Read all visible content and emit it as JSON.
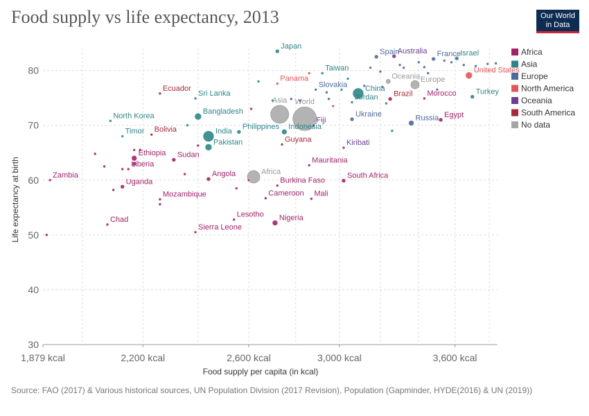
{
  "title": "Food supply vs life expectancy, 2013",
  "logo": {
    "line1": "Our World",
    "line2": "in Data"
  },
  "source": "Source: FAO (2017) & Various historical sources, UN Population Division (2017 Revision), Population (Gapminder, HYDE(2016) & UN (2019))",
  "colors": {
    "Africa": "#a2226a",
    "Asia": "#2d8587",
    "Europe": "#4c6a9c",
    "North America": "#e15759",
    "Oceania": "#6d3e91",
    "South America": "#a52a3a",
    "No data": "#a6a6a6"
  },
  "legend": [
    "Africa",
    "Asia",
    "Europe",
    "North America",
    "Oceania",
    "South America",
    "No data"
  ],
  "chart_data": {
    "type": "scatter",
    "title": "Food supply vs life expectancy, 2013",
    "xlabel": "Food supply per capita (in kcal)",
    "ylabel": "Life expectancy at birth",
    "x_scale": "log",
    "xlim": [
      1879,
      3850
    ],
    "ylim": [
      30,
      84
    ],
    "x_ticks": [
      {
        "value": 1879,
        "label": "1,879 kcal"
      },
      {
        "value": 2200,
        "label": "2,200 kcal"
      },
      {
        "value": 2600,
        "label": "2,600 kcal"
      },
      {
        "value": 3000,
        "label": "3,000 kcal"
      },
      {
        "value": 3600,
        "label": "3,600 kcal"
      }
    ],
    "y_ticks": [
      30,
      40,
      50,
      60,
      70,
      80
    ],
    "extra_gridlines_x": [
      2000,
      2400,
      2800,
      3200,
      3400,
      3800
    ],
    "grid": "dashed",
    "legend_position": "right",
    "labeled_points": [
      {
        "name": "Japan",
        "x": 2720,
        "y": 83.5,
        "region": "Asia",
        "size": 3
      },
      {
        "name": "Spain",
        "x": 3180,
        "y": 82.5,
        "region": "Europe",
        "size": 3
      },
      {
        "name": "Australia",
        "x": 3270,
        "y": 82.6,
        "region": "Oceania",
        "size": 3
      },
      {
        "name": "France",
        "x": 3480,
        "y": 82.1,
        "region": "Europe",
        "size": 3
      },
      {
        "name": "Israel",
        "x": 3610,
        "y": 82.2,
        "region": "Asia",
        "size": 3
      },
      {
        "name": "United States",
        "x": 3680,
        "y": 79.1,
        "region": "North America",
        "size": 5
      },
      {
        "name": "Turkey",
        "x": 3700,
        "y": 75.2,
        "region": "Asia",
        "size": 3
      },
      {
        "name": "Panama",
        "x": 2720,
        "y": 77.6,
        "region": "North America",
        "size": 2
      },
      {
        "name": "Oceania",
        "x": 3240,
        "y": 78.0,
        "region": "No data",
        "size": 3
      },
      {
        "name": "Europe",
        "x": 3380,
        "y": 77.4,
        "region": "No data",
        "size": 6
      },
      {
        "name": "Taiwan",
        "x": 2920,
        "y": 79.5,
        "region": "Asia",
        "size": 2
      },
      {
        "name": "Slovakia",
        "x": 2890,
        "y": 76.5,
        "region": "Europe",
        "size": 2
      },
      {
        "name": "China",
        "x": 3090,
        "y": 75.8,
        "region": "Asia",
        "size": 8
      },
      {
        "name": "Jordan",
        "x": 3060,
        "y": 74.2,
        "region": "Asia",
        "size": 2
      },
      {
        "name": "Brazil",
        "x": 3250,
        "y": 74.8,
        "region": "South America",
        "size": 3
      },
      {
        "name": "Morocco",
        "x": 3430,
        "y": 74.9,
        "region": "Africa",
        "size": 2
      },
      {
        "name": "Ecuador",
        "x": 2260,
        "y": 75.8,
        "region": "South America",
        "size": 2
      },
      {
        "name": "Sri Lanka",
        "x": 2390,
        "y": 74.9,
        "region": "Asia",
        "size": 2
      },
      {
        "name": "Asia",
        "x": 2730,
        "y": 72.0,
        "region": "No data",
        "size": 13
      },
      {
        "name": "World",
        "x": 2840,
        "y": 71.2,
        "region": "No data",
        "size": 17
      },
      {
        "name": "Fiji",
        "x": 2880,
        "y": 70.0,
        "region": "Oceania",
        "size": 2
      },
      {
        "name": "Bangladesh",
        "x": 2400,
        "y": 71.6,
        "region": "Asia",
        "size": 5
      },
      {
        "name": "Ukraine",
        "x": 3060,
        "y": 71.1,
        "region": "Europe",
        "size": 3
      },
      {
        "name": "Russia",
        "x": 3360,
        "y": 70.4,
        "region": "Europe",
        "size": 4
      },
      {
        "name": "Egypt",
        "x": 3520,
        "y": 71.0,
        "region": "Africa",
        "size": 3
      },
      {
        "name": "North Korea",
        "x": 2090,
        "y": 70.8,
        "region": "Asia",
        "size": 2
      },
      {
        "name": "Philippines",
        "x": 2560,
        "y": 68.8,
        "region": "Asia",
        "size": 3
      },
      {
        "name": "Indonesia",
        "x": 2750,
        "y": 68.8,
        "region": "Asia",
        "size": 4
      },
      {
        "name": "India",
        "x": 2440,
        "y": 68.0,
        "region": "Asia",
        "size": 8
      },
      {
        "name": "Timor",
        "x": 2130,
        "y": 68.0,
        "region": "Asia",
        "size": 2
      },
      {
        "name": "Bolivia",
        "x": 2230,
        "y": 68.3,
        "region": "South America",
        "size": 2
      },
      {
        "name": "Pakistan",
        "x": 2440,
        "y": 66.0,
        "region": "Asia",
        "size": 5
      },
      {
        "name": "Guyana",
        "x": 2740,
        "y": 66.5,
        "region": "South America",
        "size": 2
      },
      {
        "name": "Kiribati",
        "x": 3020,
        "y": 65.9,
        "region": "Oceania",
        "size": 2
      },
      {
        "name": "Ethiopia",
        "x": 2170,
        "y": 64.0,
        "region": "Africa",
        "size": 4
      },
      {
        "name": "Sudan",
        "x": 2310,
        "y": 63.7,
        "region": "Africa",
        "size": 3
      },
      {
        "name": "Mauritania",
        "x": 2860,
        "y": 62.7,
        "region": "Africa",
        "size": 2
      },
      {
        "name": "Liberia",
        "x": 2150,
        "y": 62.0,
        "region": "Africa",
        "size": 2
      },
      {
        "name": "Africa",
        "x": 2620,
        "y": 60.6,
        "region": "No data",
        "size": 9
      },
      {
        "name": "Angola",
        "x": 2440,
        "y": 60.2,
        "region": "Africa",
        "size": 3
      },
      {
        "name": "South Africa",
        "x": 3020,
        "y": 59.9,
        "region": "Africa",
        "size": 3
      },
      {
        "name": "Zambia",
        "x": 1900,
        "y": 60.0,
        "region": "Africa",
        "size": 2
      },
      {
        "name": "Uganda",
        "x": 2130,
        "y": 58.8,
        "region": "Africa",
        "size": 3
      },
      {
        "name": "Burkina Faso",
        "x": 2720,
        "y": 59.0,
        "region": "Africa",
        "size": 2
      },
      {
        "name": "Cameroon",
        "x": 2670,
        "y": 56.7,
        "region": "Africa",
        "size": 2
      },
      {
        "name": "Mali",
        "x": 2870,
        "y": 56.6,
        "region": "Africa",
        "size": 2
      },
      {
        "name": "Mozambique",
        "x": 2260,
        "y": 56.5,
        "region": "Africa",
        "size": 2
      },
      {
        "name": "Chad",
        "x": 2080,
        "y": 51.9,
        "region": "Africa",
        "size": 2
      },
      {
        "name": "Lesotho",
        "x": 2540,
        "y": 52.8,
        "region": "Africa",
        "size": 2
      },
      {
        "name": "Nigeria",
        "x": 2710,
        "y": 52.2,
        "region": "Africa",
        "size": 4
      },
      {
        "name": "Sierra Leone",
        "x": 2390,
        "y": 50.5,
        "region": "Africa",
        "size": 2
      }
    ],
    "other_points": [
      {
        "x": 1890,
        "y": 50.0,
        "region": "Africa",
        "size": 2
      },
      {
        "x": 2040,
        "y": 64.8,
        "region": "Africa",
        "size": 2
      },
      {
        "x": 2070,
        "y": 62.5,
        "region": "Africa",
        "size": 2
      },
      {
        "x": 2100,
        "y": 58.2,
        "region": "Africa",
        "size": 2
      },
      {
        "x": 2170,
        "y": 65.5,
        "region": "Africa",
        "size": 2
      },
      {
        "x": 2190,
        "y": 65.5,
        "region": "Africa",
        "size": 2
      },
      {
        "x": 2170,
        "y": 63.0,
        "region": "Africa",
        "size": 3
      },
      {
        "x": 2130,
        "y": 62.0,
        "region": "Africa",
        "size": 2
      },
      {
        "x": 2260,
        "y": 55.6,
        "region": "Africa",
        "size": 2
      },
      {
        "x": 2350,
        "y": 61.1,
        "region": "Africa",
        "size": 2
      },
      {
        "x": 2400,
        "y": 66.3,
        "region": "Africa",
        "size": 2
      },
      {
        "x": 2360,
        "y": 70.0,
        "region": "Asia",
        "size": 2
      },
      {
        "x": 2550,
        "y": 58.5,
        "region": "Africa",
        "size": 2
      },
      {
        "x": 2600,
        "y": 60.0,
        "region": "Africa",
        "size": 2
      },
      {
        "x": 2640,
        "y": 78.0,
        "region": "Asia",
        "size": 2
      },
      {
        "x": 2610,
        "y": 73.0,
        "region": "South America",
        "size": 2
      },
      {
        "x": 2700,
        "y": 74.5,
        "region": "Asia",
        "size": 2
      },
      {
        "x": 2780,
        "y": 74.8,
        "region": "Europe",
        "size": 2
      },
      {
        "x": 2820,
        "y": 74.5,
        "region": "Oceania",
        "size": 2
      },
      {
        "x": 2860,
        "y": 79.5,
        "region": "North America",
        "size": 2
      },
      {
        "x": 2940,
        "y": 76.0,
        "region": "Europe",
        "size": 2
      },
      {
        "x": 2950,
        "y": 74.8,
        "region": "Europe",
        "size": 2
      },
      {
        "x": 2970,
        "y": 73.5,
        "region": "North America",
        "size": 2
      },
      {
        "x": 3010,
        "y": 76.5,
        "region": "Asia",
        "size": 2
      },
      {
        "x": 3040,
        "y": 78.5,
        "region": "Asia",
        "size": 2
      },
      {
        "x": 3120,
        "y": 77.2,
        "region": "Europe",
        "size": 2
      },
      {
        "x": 3150,
        "y": 80.5,
        "region": "Europe",
        "size": 2
      },
      {
        "x": 3200,
        "y": 79.8,
        "region": "Europe",
        "size": 2
      },
      {
        "x": 3210,
        "y": 77.0,
        "region": "Europe",
        "size": 2
      },
      {
        "x": 3230,
        "y": 74.0,
        "region": "Europe",
        "size": 2
      },
      {
        "x": 3260,
        "y": 69.0,
        "region": "Asia",
        "size": 2
      },
      {
        "x": 3300,
        "y": 81.0,
        "region": "Europe",
        "size": 2
      },
      {
        "x": 3320,
        "y": 80.5,
        "region": "Europe",
        "size": 2
      },
      {
        "x": 3400,
        "y": 81.5,
        "region": "Europe",
        "size": 2
      },
      {
        "x": 3430,
        "y": 80.6,
        "region": "Europe",
        "size": 2
      },
      {
        "x": 3450,
        "y": 79.5,
        "region": "Europe",
        "size": 2
      },
      {
        "x": 3500,
        "y": 76.5,
        "region": "Europe",
        "size": 2
      },
      {
        "x": 3540,
        "y": 81.8,
        "region": "Europe",
        "size": 2
      },
      {
        "x": 3580,
        "y": 81.5,
        "region": "Europe",
        "size": 2
      },
      {
        "x": 3650,
        "y": 81.0,
        "region": "Europe",
        "size": 2
      },
      {
        "x": 3720,
        "y": 80.8,
        "region": "Europe",
        "size": 2
      },
      {
        "x": 3790,
        "y": 81.2,
        "region": "Europe",
        "size": 2
      },
      {
        "x": 3840,
        "y": 81.3,
        "region": "Europe",
        "size": 2
      }
    ]
  }
}
